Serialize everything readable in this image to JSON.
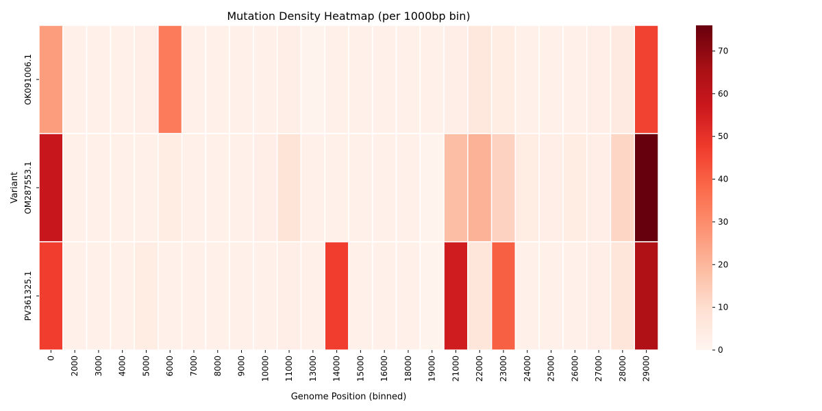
{
  "chart_data": {
    "type": "heatmap",
    "title": "Mutation Density Heatmap (per 1000bp bin)",
    "xlabel": "Genome Position (binned)",
    "ylabel": "Variant",
    "x_categories": [
      "0",
      "2000",
      "3000",
      "4000",
      "5000",
      "6000",
      "7000",
      "8000",
      "9000",
      "10000",
      "11000",
      "13000",
      "14000",
      "15000",
      "16000",
      "18000",
      "19000",
      "21000",
      "22000",
      "23000",
      "24000",
      "25000",
      "26000",
      "27000",
      "28000",
      "29000"
    ],
    "y_categories": [
      "OK091006.1",
      "OM287553.1",
      "PV361325.1"
    ],
    "values": [
      [
        26,
        2,
        2,
        2,
        3,
        34,
        2,
        2,
        2,
        2,
        3,
        1,
        2,
        2,
        2,
        2,
        2,
        3,
        6,
        4,
        2,
        2,
        2,
        3,
        5,
        46
      ],
      [
        58,
        2,
        2,
        2,
        2,
        4,
        2,
        2,
        2,
        3,
        8,
        2,
        2,
        2,
        2,
        2,
        1,
        18,
        21,
        13,
        4,
        3,
        4,
        3,
        12,
        76
      ],
      [
        47,
        2,
        2,
        2,
        4,
        2,
        2,
        2,
        2,
        2,
        3,
        2,
        47,
        2,
        2,
        2,
        1,
        56,
        7,
        40,
        2,
        2,
        2,
        3,
        7,
        64
      ]
    ],
    "zlim": [
      0,
      76
    ],
    "colorbar_ticks": [
      0,
      10,
      20,
      30,
      40,
      50,
      60,
      70
    ],
    "colormap": "Reds",
    "colormap_stops": [
      "#fff5f0",
      "#fee0d2",
      "#fcbba1",
      "#fc9272",
      "#fb6a4a",
      "#ef3b2c",
      "#cb181d",
      "#a50f15",
      "#67000d"
    ],
    "grid_line_color": "#ffffff"
  }
}
